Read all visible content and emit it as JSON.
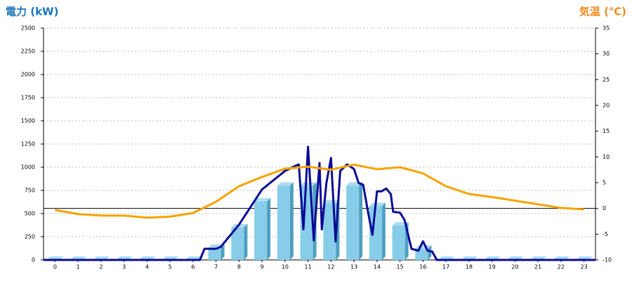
{
  "chart_data": {
    "type": "bar",
    "title": "電力 (kW)",
    "y2_title": "気温 (℃)",
    "categories": [
      "0",
      "1",
      "2",
      "3",
      "4",
      "5",
      "6",
      "7",
      "8",
      "9",
      "10",
      "11",
      "12",
      "13",
      "14",
      "15",
      "16",
      "17",
      "18",
      "19",
      "20",
      "21",
      "22",
      "23"
    ],
    "xlim": [
      -0.5,
      23.5
    ],
    "ylim": [
      0,
      2500
    ],
    "yticks": [
      0,
      250,
      500,
      750,
      1000,
      1250,
      1500,
      1750,
      2000,
      2250,
      2500
    ],
    "y2lim": [
      -10,
      35
    ],
    "y2ticks": [
      -10,
      -5,
      0,
      5,
      10,
      15,
      20,
      25,
      30,
      35
    ],
    "grid": true,
    "series": [
      {
        "type": "bar",
        "color": "#87cde9",
        "values": [
          0,
          0,
          0,
          0,
          0,
          0,
          0,
          130,
          350,
          630,
          800,
          800,
          610,
          800,
          580,
          370,
          120,
          0,
          0,
          0,
          0,
          0,
          0,
          0
        ]
      },
      {
        "type": "line",
        "color": "#0a0a96",
        "x": [
          -0.5,
          6.3,
          6.5,
          7.0,
          7.2,
          8.0,
          9.0,
          10.0,
          10.5,
          10.6,
          10.8,
          11.0,
          11.25,
          11.5,
          11.6,
          11.8,
          12.0,
          12.2,
          12.4,
          12.7,
          13.0,
          13.2,
          13.4,
          13.6,
          13.8,
          14.0,
          14.2,
          14.4,
          14.6,
          14.7,
          15.0,
          15.2,
          15.5,
          15.8,
          16.0,
          16.2,
          16.4,
          16.6,
          23.5
        ],
        "values": [
          0,
          0,
          120,
          120,
          140,
          380,
          760,
          960,
          1020,
          1030,
          330,
          1220,
          210,
          1045,
          330,
          830,
          1100,
          200,
          960,
          1030,
          980,
          830,
          810,
          530,
          270,
          740,
          740,
          770,
          710,
          520,
          510,
          430,
          120,
          100,
          200,
          100,
          90,
          0,
          0
        ]
      },
      {
        "type": "line",
        "axis": "y2",
        "color": "#f5a300",
        "values": [
          -0.3,
          -1.1,
          -1.4,
          -1.4,
          -1.8,
          -1.6,
          -0.9,
          1.3,
          4.3,
          6.1,
          7.7,
          8.1,
          7.5,
          8.5,
          7.6,
          8.0,
          6.8,
          4.3,
          2.8,
          2.2,
          1.5,
          0.8,
          0.1,
          -0.2
        ]
      }
    ]
  }
}
